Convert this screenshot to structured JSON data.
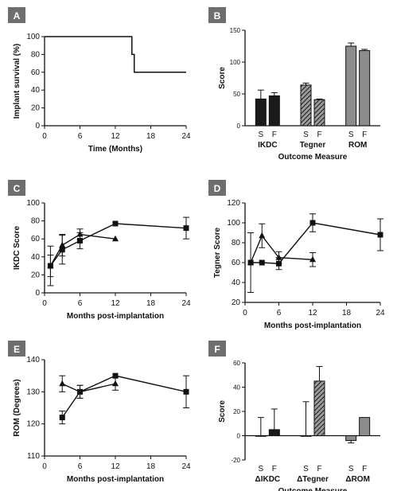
{
  "chart_data": [
    {
      "panel": "A",
      "type": "line",
      "xlabel": "Time (Months)",
      "ylabel": "Implant survival (%)",
      "xlim": [
        0,
        24
      ],
      "ylim": [
        0,
        100
      ],
      "xticks": [
        0,
        6,
        12,
        18,
        24
      ],
      "yticks": [
        0,
        20,
        40,
        60,
        80,
        100
      ],
      "step": true,
      "series": [
        {
          "points": [
            [
              0,
              100
            ],
            [
              14.8,
              100
            ],
            [
              14.8,
              80
            ],
            [
              15.2,
              80
            ],
            [
              15.2,
              60
            ],
            [
              24,
              60
            ]
          ]
        }
      ]
    },
    {
      "panel": "B",
      "type": "bar",
      "xlabel": "Outcome Measure",
      "ylabel": "Score",
      "ylim": [
        0,
        150
      ],
      "yticks": [
        0,
        50,
        100,
        150
      ],
      "categories": [
        "S",
        "F",
        "S",
        "F",
        "S",
        "F"
      ],
      "groups": [
        "IKDC",
        "Tegner",
        "ROM"
      ],
      "values": [
        42,
        47,
        64,
        41,
        125,
        118
      ],
      "errors": [
        14,
        5,
        3,
        1,
        5,
        2
      ],
      "fills": [
        "solid",
        "solid",
        "hatch",
        "hatch",
        "grey",
        "grey"
      ]
    },
    {
      "panel": "C",
      "type": "line",
      "xlabel": "Months post-implantation",
      "ylabel": "IKDC Score",
      "xlim": [
        0,
        24
      ],
      "ylim": [
        0,
        100
      ],
      "xticks": [
        0,
        6,
        12,
        18,
        24
      ],
      "yticks": [
        0,
        20,
        40,
        60,
        80,
        100
      ],
      "series": [
        {
          "marker": "square",
          "x": [
            1,
            3,
            6,
            12,
            24
          ],
          "y": [
            30,
            48,
            58,
            77,
            72
          ],
          "err": [
            12,
            16,
            9,
            0,
            12
          ]
        },
        {
          "marker": "triangle",
          "x": [
            1,
            3,
            6,
            12
          ],
          "y": [
            30,
            53,
            65,
            60
          ],
          "err": [
            22,
            12,
            6,
            0
          ]
        }
      ]
    },
    {
      "panel": "D",
      "type": "line",
      "xlabel": "Months post-implantation",
      "ylabel": "Tegner Score",
      "xlim": [
        0,
        24
      ],
      "ylim": [
        20,
        120
      ],
      "xticks": [
        0,
        6,
        12,
        18,
        24
      ],
      "yticks": [
        20,
        40,
        60,
        80,
        100,
        120
      ],
      "series": [
        {
          "marker": "square",
          "x": [
            1,
            3,
            6,
            12,
            24
          ],
          "y": [
            60,
            60,
            59,
            100,
            88
          ],
          "err": [
            0,
            0,
            6,
            9,
            16
          ]
        },
        {
          "marker": "triangle",
          "x": [
            1,
            3,
            6,
            12
          ],
          "y": [
            60,
            87,
            65,
            63
          ],
          "err": [
            30,
            12,
            6,
            7
          ]
        }
      ]
    },
    {
      "panel": "E",
      "type": "line",
      "xlabel": "Months post-implantation",
      "ylabel": "ROM (Degrees)",
      "xlim": [
        0,
        24
      ],
      "ylim": [
        110,
        140
      ],
      "xticks": [
        0,
        6,
        12,
        18,
        24
      ],
      "yticks": [
        110,
        120,
        130,
        140
      ],
      "series": [
        {
          "marker": "square",
          "x": [
            3,
            6,
            12,
            24
          ],
          "y": [
            122,
            130,
            135,
            130
          ],
          "err": [
            2,
            2,
            0,
            5
          ]
        },
        {
          "marker": "triangle",
          "x": [
            3,
            6,
            12
          ],
          "y": [
            132.5,
            130,
            132.5
          ],
          "err": [
            2.5,
            2,
            2
          ]
        }
      ]
    },
    {
      "panel": "F",
      "type": "bar",
      "xlabel": "Outcome Measure",
      "ylabel": "Score",
      "ylim": [
        -20,
        60
      ],
      "yticks": [
        -20,
        0,
        20,
        40,
        60
      ],
      "categories": [
        "S",
        "F",
        "S",
        "F",
        "S",
        "F"
      ],
      "groups": [
        "ΔIKDC",
        "ΔTegner",
        "ΔROM"
      ],
      "values": [
        0,
        5,
        0,
        45,
        -4,
        15
      ],
      "errors": [
        15,
        17,
        28,
        12,
        2,
        0
      ],
      "fills": [
        "solid",
        "solid",
        "hatch",
        "hatch",
        "grey",
        "grey"
      ]
    }
  ]
}
